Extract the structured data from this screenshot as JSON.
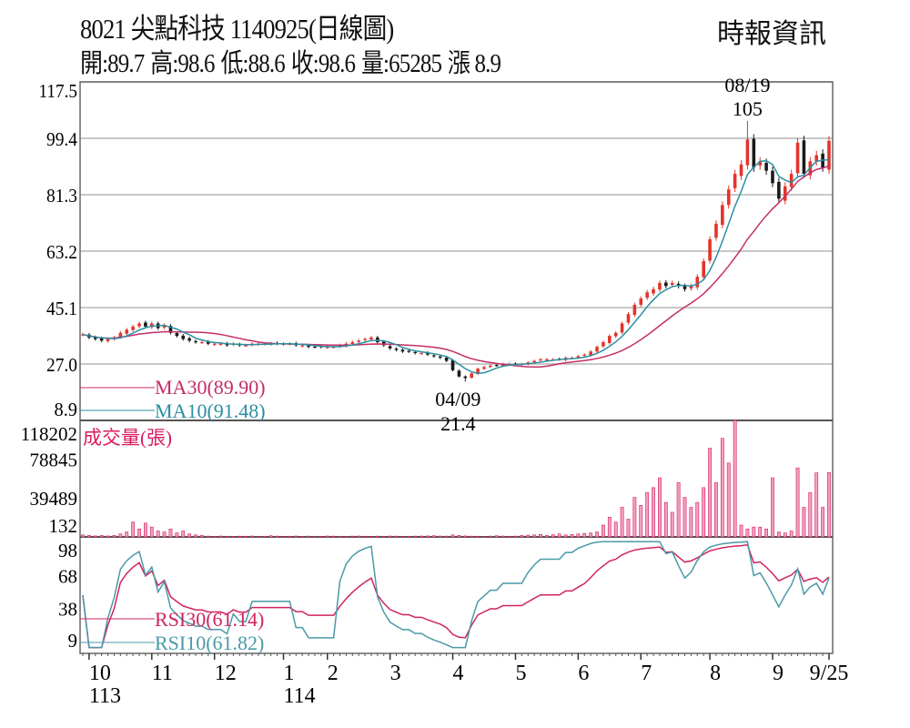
{
  "header": {
    "title": "8021  尖點科技 1140925(日線圖)",
    "brand": "時報資訊",
    "quote": [
      "開:89.7",
      "高:98.6",
      "低:88.6",
      "收:98.6",
      "量:65285",
      "漲 8.9"
    ]
  },
  "colors": {
    "up": "#e3342b",
    "down": "#1a1a1a",
    "ma30": "#c42e68",
    "ma10": "#2b8fa3",
    "volume": "#d81b60",
    "volume_fill": "#f2a0bf",
    "rsi30": "#d0245f",
    "rsi10": "#4a9aa8",
    "grid": "#b5b5b5"
  },
  "chart_data": {
    "type": "candlestick",
    "title": "8021 尖點科技 1140925(日線圖)",
    "price_axis": {
      "ticks": [
        "117.5",
        "99.4",
        "81.3",
        "63.2",
        "45.1",
        "27.0",
        "8.9"
      ],
      "range": [
        8.9,
        117.5
      ]
    },
    "volume_axis": {
      "label": "成交量(張)",
      "ticks": [
        "118202",
        "78845",
        "39489",
        "132"
      ],
      "range": [
        0,
        118202
      ]
    },
    "rsi_axis": {
      "ticks": [
        "98",
        "68",
        "38",
        "9"
      ],
      "range": [
        0,
        100
      ]
    },
    "x_labels": [
      {
        "label": "10",
        "index": 1
      },
      {
        "label": "11",
        "index": 11
      },
      {
        "label": "12",
        "index": 21
      },
      {
        "label": "1",
        "index": 32
      },
      {
        "label": "2",
        "index": 39
      },
      {
        "label": "3",
        "index": 49
      },
      {
        "label": "4",
        "index": 59
      },
      {
        "label": "5",
        "index": 69
      },
      {
        "label": "6",
        "index": 79
      },
      {
        "label": "7",
        "index": 89
      },
      {
        "label": "8",
        "index": 100
      },
      {
        "label": "9",
        "index": 110
      },
      {
        "label": "9/25",
        "index": 119
      }
    ],
    "year_labels": [
      {
        "label": "113",
        "index": 1
      },
      {
        "label": "114",
        "index": 32
      }
    ],
    "annotations": [
      {
        "date": "08/19",
        "value": "105",
        "index": 106,
        "kind": "high"
      },
      {
        "date": "04/09",
        "value": "21.4",
        "index": 61,
        "kind": "low"
      }
    ],
    "legend": {
      "ma30": "MA30(89.90)",
      "ma10": "MA10(91.48)",
      "rsi30": "RSI30(61.14)",
      "rsi10": "RSI10(61.82)"
    },
    "close": [
      36.5,
      35.5,
      35,
      34.5,
      35,
      35.5,
      37,
      38,
      39,
      40,
      39,
      40,
      38.5,
      39.5,
      37,
      36,
      35,
      34.5,
      34,
      34,
      33.5,
      33.5,
      33.5,
      33,
      33.5,
      33,
      33,
      33.5,
      33.5,
      33.5,
      33.5,
      33.5,
      33.5,
      33.5,
      33,
      33,
      32.5,
      32.5,
      32.5,
      32.5,
      32.5,
      33,
      33.5,
      34,
      34.5,
      35,
      35.5,
      34,
      33,
      32,
      31.5,
      31,
      31,
      30.5,
      30.5,
      30,
      29.5,
      29,
      28,
      25,
      23,
      22.5,
      24,
      25.5,
      26,
      26.5,
      26.5,
      27,
      27,
      27,
      27,
      27.5,
      28,
      28.5,
      28.5,
      28.5,
      28.5,
      29,
      29,
      29.5,
      30,
      31,
      32.5,
      34,
      36,
      37,
      40,
      43,
      46,
      48,
      50,
      51,
      53,
      52,
      53,
      52,
      51,
      52,
      55,
      60,
      67,
      72,
      78,
      83,
      88,
      91,
      99,
      90,
      92,
      89,
      85,
      80,
      84,
      88,
      98,
      88,
      92,
      94,
      90,
      98.6
    ],
    "volume": [
      2000,
      1500,
      1000,
      1500,
      1000,
      1500,
      3000,
      5000,
      15000,
      8000,
      14000,
      10000,
      6000,
      5000,
      8000,
      4000,
      6000,
      3000,
      2000,
      1500,
      800,
      600,
      900,
      700,
      600,
      800,
      700,
      900,
      600,
      700,
      1200,
      800,
      600,
      700,
      900,
      600,
      800,
      700,
      600,
      900,
      800,
      700,
      600,
      800,
      900,
      700,
      600,
      800,
      700,
      900,
      800,
      600,
      700,
      800,
      900,
      1000,
      1200,
      900,
      800,
      2000,
      1500,
      1000,
      800,
      700,
      600,
      800,
      1200,
      900,
      700,
      800,
      1500,
      1800,
      2000,
      2500,
      1500,
      2200,
      3000,
      2000,
      2500,
      3000,
      3500,
      4000,
      5000,
      12000,
      20000,
      15000,
      30000,
      18000,
      40000,
      32000,
      45000,
      50000,
      60000,
      35000,
      25000,
      55000,
      40000,
      30000,
      35000,
      50000,
      90000,
      55000,
      100000,
      75000,
      118202,
      12000,
      8000,
      10000,
      10000,
      8000,
      60000,
      5000,
      4000,
      6000,
      70000,
      30000,
      45000,
      65000,
      30000,
      65285
    ]
  }
}
